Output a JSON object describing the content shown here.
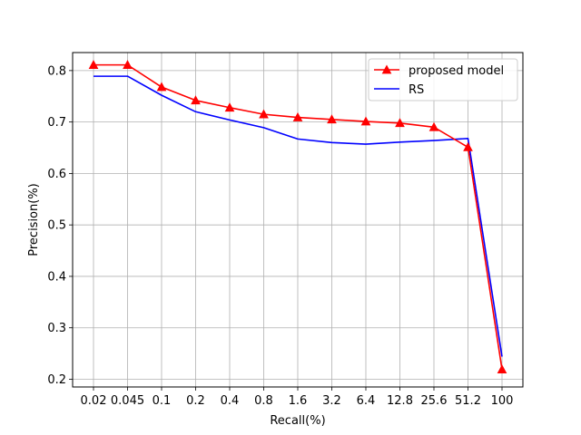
{
  "chart_data": {
    "type": "line",
    "title": "",
    "xlabel": "Recall(%)",
    "ylabel": "Precision(%)",
    "categories": [
      "0.02",
      "0.045",
      "0.1",
      "0.2",
      "0.4",
      "0.8",
      "1.6",
      "3.2",
      "6.4",
      "12.8",
      "25.6",
      "51.2",
      "100"
    ],
    "ylim": [
      0.185,
      0.835
    ],
    "yticks": [
      0.2,
      0.3,
      0.4,
      0.5,
      0.6,
      0.7,
      0.8
    ],
    "grid": true,
    "legend_position": "top-right",
    "series": [
      {
        "name": "proposed model",
        "color": "#ff0000",
        "marker": "triangle",
        "values": [
          0.811,
          0.811,
          0.768,
          0.742,
          0.728,
          0.715,
          0.709,
          0.705,
          0.701,
          0.698,
          0.69,
          0.651,
          0.219
        ]
      },
      {
        "name": "RS",
        "color": "#0000ff",
        "marker": "none",
        "values": [
          0.789,
          0.789,
          0.752,
          0.72,
          0.704,
          0.689,
          0.667,
          0.66,
          0.657,
          0.661,
          0.664,
          0.668,
          0.244
        ]
      }
    ]
  }
}
